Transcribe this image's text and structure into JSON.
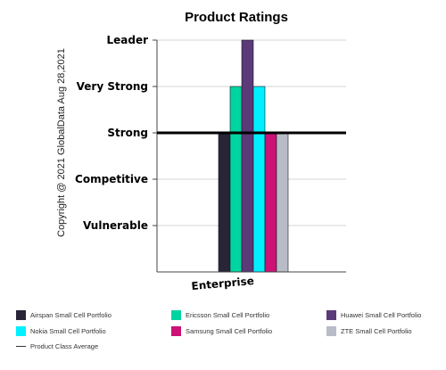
{
  "chart_data": {
    "type": "bar",
    "title": "Product Ratings",
    "categories": [
      "Enterprise"
    ],
    "y_levels": [
      "Vulnerable",
      "Competitive",
      "Strong",
      "Very Strong",
      "Leader"
    ],
    "ylim": [
      0,
      5
    ],
    "series": [
      {
        "name": "Airspan Small Cell Portfolio",
        "values": [
          3
        ],
        "color": "#2a2438"
      },
      {
        "name": "Ericsson Small Cell Portfolio",
        "values": [
          4
        ],
        "color": "#00d4a0"
      },
      {
        "name": "Huawei Small Cell Portfolio",
        "values": [
          5
        ],
        "color": "#5a3a78"
      },
      {
        "name": "Nokia Small Cell Portfolio",
        "values": [
          4
        ],
        "color": "#00f0ff"
      },
      {
        "name": "Samsung Small Cell Portfolio",
        "values": [
          3
        ],
        "color": "#cc1177"
      },
      {
        "name": "ZTE Small Cell Portfolio",
        "values": [
          3
        ],
        "color": "#b8bcc6"
      }
    ],
    "reference_line": {
      "name": "Product Class Average",
      "value": 3,
      "color": "#000000"
    },
    "grid": true,
    "legend_position": "bottom"
  },
  "copyright": "Copyright @ 2021 GlobalData Aug 28,2021"
}
